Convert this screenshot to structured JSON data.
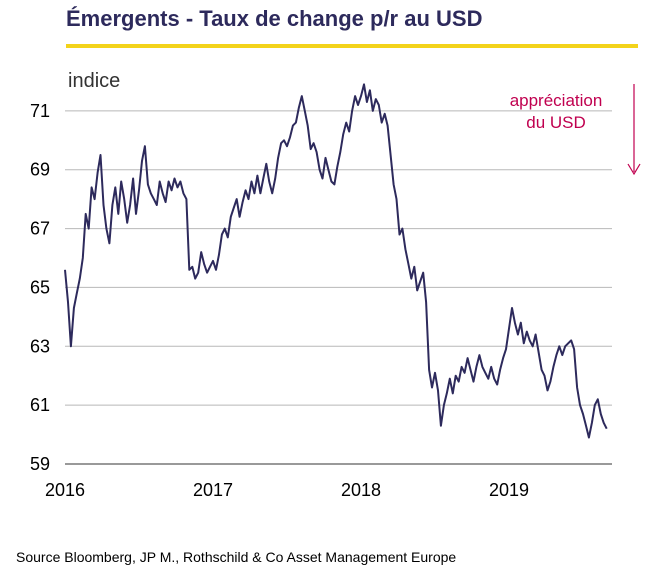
{
  "header": {
    "title": "Émergents  - Taux de change p/r au USD",
    "rule_color": "#f3d31a"
  },
  "footer": {
    "source": "Source Bloomberg, JP M., Rothschild & Co Asset Management Europe"
  },
  "chart_data": {
    "type": "line",
    "title": "Émergents  - Taux de change p/r au USD",
    "ylabel": "indice",
    "xlabel": "",
    "ylim": [
      59,
      73
    ],
    "xlim": [
      2016,
      2019.75
    ],
    "yticks": [
      59,
      61,
      63,
      65,
      67,
      69,
      71
    ],
    "xticks": [
      2016,
      2017,
      2018,
      2019
    ],
    "xtick_labels": [
      "2016",
      "2017",
      "2018",
      "2019"
    ],
    "grid": "horizontal",
    "line_color": "#2d2a5c",
    "annotation": {
      "text_lines": [
        "appréciation",
        "du USD"
      ],
      "color": "#c0004f",
      "arrow": "down"
    },
    "series": [
      {
        "values": [
          [
            2016.0,
            65.6
          ],
          [
            2016.02,
            64.5
          ],
          [
            2016.04,
            63.0
          ],
          [
            2016.06,
            64.3
          ],
          [
            2016.08,
            64.8
          ],
          [
            2016.1,
            65.3
          ],
          [
            2016.12,
            66.0
          ],
          [
            2016.14,
            67.5
          ],
          [
            2016.16,
            67.0
          ],
          [
            2016.18,
            68.4
          ],
          [
            2016.2,
            68.0
          ],
          [
            2016.22,
            68.9
          ],
          [
            2016.24,
            69.5
          ],
          [
            2016.26,
            67.8
          ],
          [
            2016.28,
            67.0
          ],
          [
            2016.3,
            66.5
          ],
          [
            2016.32,
            67.8
          ],
          [
            2016.34,
            68.4
          ],
          [
            2016.36,
            67.5
          ],
          [
            2016.38,
            68.6
          ],
          [
            2016.4,
            68.0
          ],
          [
            2016.42,
            67.2
          ],
          [
            2016.44,
            67.8
          ],
          [
            2016.46,
            68.7
          ],
          [
            2016.48,
            67.5
          ],
          [
            2016.5,
            68.3
          ],
          [
            2016.52,
            69.3
          ],
          [
            2016.54,
            69.8
          ],
          [
            2016.56,
            68.5
          ],
          [
            2016.58,
            68.2
          ],
          [
            2016.6,
            68.0
          ],
          [
            2016.62,
            67.8
          ],
          [
            2016.64,
            68.6
          ],
          [
            2016.66,
            68.2
          ],
          [
            2016.68,
            67.9
          ],
          [
            2016.7,
            68.6
          ],
          [
            2016.72,
            68.3
          ],
          [
            2016.74,
            68.7
          ],
          [
            2016.76,
            68.4
          ],
          [
            2016.78,
            68.6
          ],
          [
            2016.8,
            68.2
          ],
          [
            2016.82,
            68.0
          ],
          [
            2016.84,
            65.6
          ],
          [
            2016.86,
            65.7
          ],
          [
            2016.88,
            65.3
          ],
          [
            2016.9,
            65.5
          ],
          [
            2016.92,
            66.2
          ],
          [
            2016.94,
            65.8
          ],
          [
            2016.96,
            65.5
          ],
          [
            2016.98,
            65.7
          ],
          [
            2017.0,
            65.9
          ],
          [
            2017.02,
            65.6
          ],
          [
            2017.04,
            66.1
          ],
          [
            2017.06,
            66.8
          ],
          [
            2017.08,
            67.0
          ],
          [
            2017.1,
            66.7
          ],
          [
            2017.12,
            67.4
          ],
          [
            2017.14,
            67.7
          ],
          [
            2017.16,
            68.0
          ],
          [
            2017.18,
            67.4
          ],
          [
            2017.2,
            67.9
          ],
          [
            2017.22,
            68.3
          ],
          [
            2017.24,
            68.0
          ],
          [
            2017.26,
            68.6
          ],
          [
            2017.28,
            68.2
          ],
          [
            2017.3,
            68.8
          ],
          [
            2017.32,
            68.2
          ],
          [
            2017.34,
            68.7
          ],
          [
            2017.36,
            69.2
          ],
          [
            2017.38,
            68.6
          ],
          [
            2017.4,
            68.2
          ],
          [
            2017.42,
            68.7
          ],
          [
            2017.44,
            69.4
          ],
          [
            2017.46,
            69.9
          ],
          [
            2017.48,
            70.0
          ],
          [
            2017.5,
            69.8
          ],
          [
            2017.52,
            70.1
          ],
          [
            2017.54,
            70.5
          ],
          [
            2017.56,
            70.6
          ],
          [
            2017.58,
            71.1
          ],
          [
            2017.6,
            71.5
          ],
          [
            2017.62,
            71.0
          ],
          [
            2017.64,
            70.5
          ],
          [
            2017.66,
            69.7
          ],
          [
            2017.68,
            69.9
          ],
          [
            2017.7,
            69.6
          ],
          [
            2017.72,
            69.0
          ],
          [
            2017.74,
            68.7
          ],
          [
            2017.76,
            69.4
          ],
          [
            2017.78,
            69.0
          ],
          [
            2017.8,
            68.6
          ],
          [
            2017.82,
            68.5
          ],
          [
            2017.84,
            69.1
          ],
          [
            2017.86,
            69.6
          ],
          [
            2017.88,
            70.2
          ],
          [
            2017.9,
            70.6
          ],
          [
            2017.92,
            70.3
          ],
          [
            2017.94,
            71.0
          ],
          [
            2017.96,
            71.5
          ],
          [
            2017.98,
            71.2
          ],
          [
            2018.0,
            71.5
          ],
          [
            2018.02,
            71.9
          ],
          [
            2018.04,
            71.3
          ],
          [
            2018.06,
            71.7
          ],
          [
            2018.08,
            71.0
          ],
          [
            2018.1,
            71.4
          ],
          [
            2018.12,
            71.2
          ],
          [
            2018.14,
            70.6
          ],
          [
            2018.16,
            70.9
          ],
          [
            2018.18,
            70.5
          ],
          [
            2018.2,
            69.5
          ],
          [
            2018.22,
            68.5
          ],
          [
            2018.24,
            68.0
          ],
          [
            2018.26,
            66.8
          ],
          [
            2018.28,
            67.0
          ],
          [
            2018.3,
            66.3
          ],
          [
            2018.32,
            65.8
          ],
          [
            2018.34,
            65.3
          ],
          [
            2018.36,
            65.7
          ],
          [
            2018.38,
            64.9
          ],
          [
            2018.4,
            65.2
          ],
          [
            2018.42,
            65.5
          ],
          [
            2018.44,
            64.5
          ],
          [
            2018.46,
            62.2
          ],
          [
            2018.48,
            61.6
          ],
          [
            2018.5,
            62.1
          ],
          [
            2018.52,
            61.5
          ],
          [
            2018.54,
            60.3
          ],
          [
            2018.56,
            61.0
          ],
          [
            2018.58,
            61.4
          ],
          [
            2018.6,
            61.9
          ],
          [
            2018.62,
            61.4
          ],
          [
            2018.64,
            62.0
          ],
          [
            2018.66,
            61.8
          ],
          [
            2018.68,
            62.3
          ],
          [
            2018.7,
            62.1
          ],
          [
            2018.72,
            62.6
          ],
          [
            2018.74,
            62.2
          ],
          [
            2018.76,
            61.8
          ],
          [
            2018.78,
            62.3
          ],
          [
            2018.8,
            62.7
          ],
          [
            2018.82,
            62.3
          ],
          [
            2018.84,
            62.1
          ],
          [
            2018.86,
            61.9
          ],
          [
            2018.88,
            62.3
          ],
          [
            2018.9,
            61.9
          ],
          [
            2018.92,
            61.7
          ],
          [
            2018.94,
            62.2
          ],
          [
            2018.96,
            62.6
          ],
          [
            2018.98,
            62.9
          ],
          [
            2019.0,
            63.6
          ],
          [
            2019.02,
            64.3
          ],
          [
            2019.04,
            63.8
          ],
          [
            2019.06,
            63.4
          ],
          [
            2019.08,
            63.8
          ],
          [
            2019.1,
            63.1
          ],
          [
            2019.12,
            63.5
          ],
          [
            2019.14,
            63.2
          ],
          [
            2019.16,
            63.0
          ],
          [
            2019.18,
            63.4
          ],
          [
            2019.2,
            62.8
          ],
          [
            2019.22,
            62.2
          ],
          [
            2019.24,
            62.0
          ],
          [
            2019.26,
            61.5
          ],
          [
            2019.28,
            61.8
          ],
          [
            2019.3,
            62.3
          ],
          [
            2019.32,
            62.7
          ],
          [
            2019.34,
            63.0
          ],
          [
            2019.36,
            62.7
          ],
          [
            2019.38,
            63.0
          ],
          [
            2019.4,
            63.1
          ],
          [
            2019.42,
            63.2
          ],
          [
            2019.44,
            62.9
          ],
          [
            2019.46,
            61.6
          ],
          [
            2019.48,
            61.0
          ],
          [
            2019.5,
            60.7
          ],
          [
            2019.52,
            60.3
          ],
          [
            2019.54,
            59.9
          ],
          [
            2019.56,
            60.4
          ],
          [
            2019.58,
            61.0
          ],
          [
            2019.6,
            61.2
          ],
          [
            2019.62,
            60.7
          ],
          [
            2019.64,
            60.4
          ],
          [
            2019.66,
            60.2
          ]
        ]
      }
    ]
  }
}
